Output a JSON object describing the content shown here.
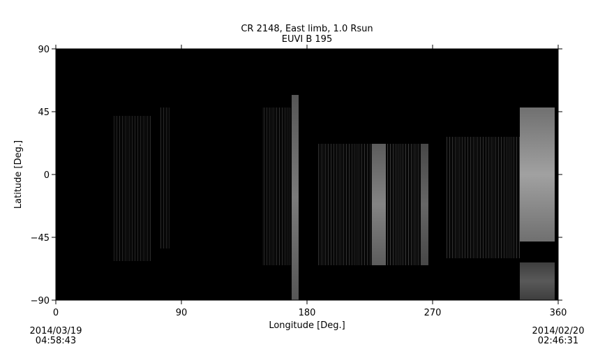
{
  "chart_data": {
    "type": "heatmap",
    "title": "CR 2148, East limb, 1.0 Rsun",
    "subtitle": "EUVI B 195",
    "xlabel": "Longitude [Deg.]",
    "ylabel": "Latitude [Deg.]",
    "xlim": [
      0,
      360
    ],
    "ylim": [
      -90,
      90
    ],
    "xticks": [
      "0",
      "90",
      "180",
      "270",
      "360"
    ],
    "yticks": [
      "90",
      "45",
      "0",
      "-45",
      "-90"
    ],
    "colormap": "grayscale",
    "background_color": "#000000",
    "start_date": "2014/03/19",
    "start_time": "04:58:43",
    "end_date": "2014/02/20",
    "end_time": "02:46:31",
    "bands": [
      {
        "lon": [
          41.5,
          68
        ],
        "lat": [
          -62,
          42
        ],
        "brightness": 0.18,
        "striped": true
      },
      {
        "lon": [
          75,
          81.5
        ],
        "lat": [
          -53,
          48
        ],
        "brightness": 0.18,
        "striped": true
      },
      {
        "lon": [
          148,
          169
        ],
        "lat": [
          -65,
          48
        ],
        "brightness": 0.2,
        "striped": true
      },
      {
        "lon": [
          169,
          174
        ],
        "lat": [
          -90,
          57
        ],
        "brightness": 0.42,
        "striped": false
      },
      {
        "lon": [
          188,
          226.5
        ],
        "lat": [
          -65,
          22
        ],
        "brightness": 0.22,
        "striped": true
      },
      {
        "lon": [
          226.5,
          236.5
        ],
        "lat": [
          -65,
          22
        ],
        "brightness": 0.45,
        "striped": false
      },
      {
        "lon": [
          237.5,
          261.5
        ],
        "lat": [
          -65,
          22
        ],
        "brightness": 0.25,
        "striped": true
      },
      {
        "lon": [
          261.5,
          267
        ],
        "lat": [
          -65,
          22
        ],
        "brightness": 0.35,
        "striped": false
      },
      {
        "lon": [
          280,
          332.5
        ],
        "lat": [
          -60,
          27
        ],
        "brightness": 0.22,
        "striped": true
      },
      {
        "lon": [
          332.5,
          357.5
        ],
        "lat": [
          -48,
          48
        ],
        "brightness": 0.55,
        "striped": false
      },
      {
        "lon": [
          332.5,
          357.5
        ],
        "lat": [
          -90,
          -63
        ],
        "brightness": 0.3,
        "striped": false
      }
    ]
  }
}
